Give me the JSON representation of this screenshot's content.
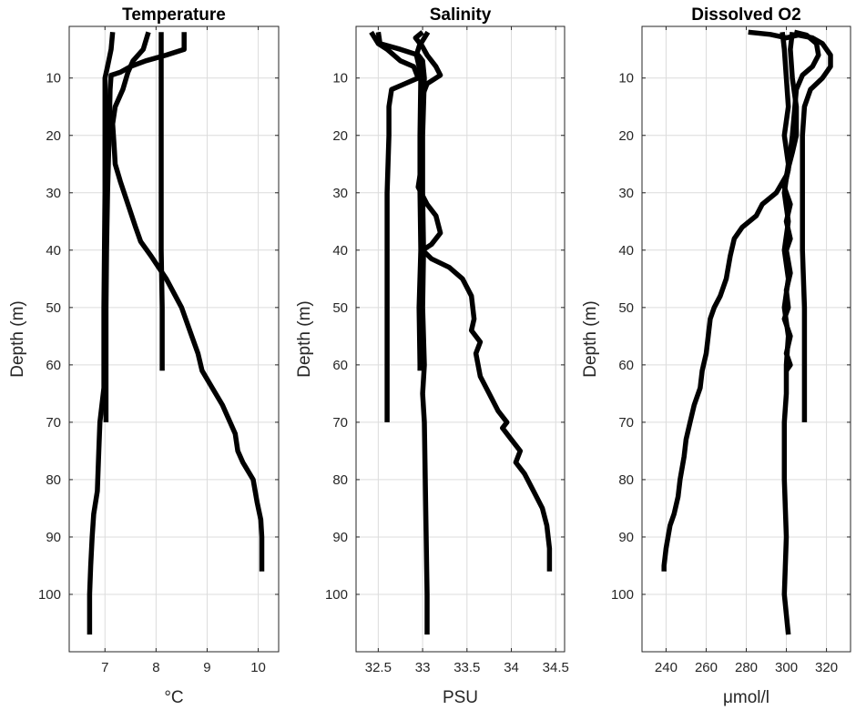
{
  "chart_data": [
    {
      "type": "line",
      "title": "Temperature",
      "xlabel": "°C",
      "ylabel": "Depth (m)",
      "xlim": [
        6.3,
        10.4
      ],
      "ylim": [
        110,
        1
      ],
      "y_reversed": true,
      "grid": true,
      "xticks": [
        7,
        8,
        9,
        10
      ],
      "yticks": [
        10,
        20,
        30,
        40,
        50,
        60,
        70,
        80,
        90,
        100
      ],
      "series": [
        {
          "points": [
            [
              7.15,
              2
            ],
            [
              7.12,
              5
            ],
            [
              7.05,
              8
            ],
            [
              7.0,
              10
            ],
            [
              7.0,
              20
            ],
            [
              7.0,
              30
            ],
            [
              6.99,
              40
            ],
            [
              6.98,
              50
            ],
            [
              6.98,
              60
            ],
            [
              6.98,
              64
            ],
            [
              6.9,
              70
            ],
            [
              6.88,
              75
            ],
            [
              6.85,
              82
            ],
            [
              6.78,
              86
            ],
            [
              6.75,
              90
            ],
            [
              6.72,
              95
            ],
            [
              6.7,
              100
            ],
            [
              6.7,
              107
            ]
          ]
        },
        {
          "points": [
            [
              8.1,
              2
            ],
            [
              8.1,
              10
            ],
            [
              8.1,
              20
            ],
            [
              8.1,
              30
            ],
            [
              8.1,
              40
            ],
            [
              8.12,
              50
            ],
            [
              8.12,
              60
            ],
            [
              8.12,
              61
            ]
          ]
        },
        {
          "points": [
            [
              7.85,
              2
            ],
            [
              7.75,
              5
            ],
            [
              7.55,
              7
            ],
            [
              7.45,
              9
            ],
            [
              7.35,
              12
            ],
            [
              7.2,
              15
            ],
            [
              7.15,
              18
            ],
            [
              7.18,
              22
            ],
            [
              7.2,
              25
            ],
            [
              7.3,
              28
            ],
            [
              7.45,
              32
            ],
            [
              7.6,
              36
            ],
            [
              7.7,
              38.5
            ],
            [
              7.9,
              41
            ],
            [
              8.2,
              45
            ],
            [
              8.5,
              50
            ],
            [
              8.7,
              55
            ],
            [
              8.82,
              58
            ],
            [
              8.9,
              61
            ],
            [
              9.1,
              64
            ],
            [
              9.3,
              67
            ],
            [
              9.4,
              69
            ],
            [
              9.55,
              72
            ],
            [
              9.6,
              75
            ],
            [
              9.7,
              77
            ],
            [
              9.9,
              80
            ],
            [
              9.98,
              84
            ],
            [
              10.05,
              87
            ],
            [
              10.07,
              90
            ],
            [
              10.07,
              96
            ]
          ]
        },
        {
          "points": [
            [
              8.55,
              2
            ],
            [
              8.55,
              5
            ],
            [
              8.2,
              6
            ],
            [
              7.8,
              7
            ],
            [
              7.5,
              8
            ],
            [
              7.3,
              9
            ],
            [
              7.12,
              9.5
            ],
            [
              7.1,
              12
            ],
            [
              7.08,
              20
            ],
            [
              7.05,
              30
            ],
            [
              7.03,
              40
            ],
            [
              7.02,
              50
            ],
            [
              7.02,
              60
            ],
            [
              7.02,
              70
            ]
          ]
        }
      ]
    },
    {
      "type": "line",
      "title": "Salinity",
      "xlabel": "PSU",
      "ylabel": "Depth (m)",
      "xlim": [
        32.25,
        34.6
      ],
      "ylim": [
        110,
        1
      ],
      "y_reversed": true,
      "grid": true,
      "xticks": [
        32.5,
        33,
        33.5,
        34,
        34.5
      ],
      "yticks": [
        10,
        20,
        30,
        40,
        50,
        60,
        70,
        80,
        90,
        100
      ],
      "series": [
        {
          "points": [
            [
              33.0,
              2
            ],
            [
              32.92,
              3
            ],
            [
              32.97,
              4
            ],
            [
              32.93,
              6
            ],
            [
              32.96,
              8
            ],
            [
              32.98,
              10
            ],
            [
              32.97,
              20
            ],
            [
              32.97,
              30
            ],
            [
              32.98,
              40
            ],
            [
              32.96,
              50
            ],
            [
              32.97,
              60
            ],
            [
              32.97,
              61
            ]
          ]
        },
        {
          "points": [
            [
              32.42,
              2
            ],
            [
              32.5,
              4
            ],
            [
              32.6,
              5
            ],
            [
              32.75,
              7
            ],
            [
              32.9,
              8
            ],
            [
              32.95,
              10
            ],
            [
              32.8,
              11
            ],
            [
              32.65,
              12
            ],
            [
              32.62,
              15
            ],
            [
              32.62,
              20
            ],
            [
              32.6,
              30
            ],
            [
              32.6,
              40
            ],
            [
              32.6,
              50
            ],
            [
              32.6,
              60
            ],
            [
              32.6,
              70
            ]
          ]
        },
        {
          "points": [
            [
              33.06,
              2
            ],
            [
              32.98,
              4
            ],
            [
              33.05,
              6
            ],
            [
              33.15,
              8
            ],
            [
              33.2,
              9.5
            ],
            [
              33.05,
              11
            ],
            [
              33.0,
              13
            ],
            [
              32.98,
              20
            ],
            [
              32.98,
              26
            ],
            [
              32.95,
              29
            ],
            [
              33.05,
              32
            ],
            [
              33.15,
              34
            ],
            [
              33.2,
              37
            ],
            [
              33.1,
              39
            ],
            [
              33.0,
              40
            ],
            [
              33.1,
              41.5
            ],
            [
              33.3,
              43
            ],
            [
              33.45,
              45
            ],
            [
              33.55,
              48
            ],
            [
              33.58,
              52
            ],
            [
              33.55,
              54
            ],
            [
              33.65,
              56
            ],
            [
              33.6,
              58
            ],
            [
              33.65,
              62
            ],
            [
              33.75,
              65
            ],
            [
              33.85,
              68
            ],
            [
              33.95,
              70
            ],
            [
              33.9,
              71
            ],
            [
              34.0,
              73
            ],
            [
              34.1,
              75
            ],
            [
              34.05,
              77
            ],
            [
              34.15,
              79
            ],
            [
              34.25,
              82
            ],
            [
              34.35,
              85
            ],
            [
              34.4,
              88
            ],
            [
              34.43,
              92
            ],
            [
              34.43,
              96
            ]
          ]
        },
        {
          "points": [
            [
              32.5,
              2
            ],
            [
              32.52,
              4
            ],
            [
              32.75,
              5
            ],
            [
              32.95,
              6
            ],
            [
              33.0,
              7
            ],
            [
              33.02,
              10
            ],
            [
              33.0,
              20
            ],
            [
              33.0,
              30
            ],
            [
              33.01,
              40
            ],
            [
              33.0,
              50
            ],
            [
              33.02,
              60
            ],
            [
              33.0,
              65
            ],
            [
              33.02,
              70
            ],
            [
              33.03,
              80
            ],
            [
              33.04,
              90
            ],
            [
              33.05,
              100
            ],
            [
              33.05,
              107
            ]
          ]
        }
      ]
    },
    {
      "type": "line",
      "title": "Dissolved O2",
      "xlabel": "μmol/l",
      "ylabel": "Depth (m)",
      "xlim": [
        228,
        332
      ],
      "ylim": [
        110,
        1
      ],
      "y_reversed": true,
      "grid": true,
      "xticks": [
        240,
        260,
        280,
        300,
        320
      ],
      "yticks": [
        10,
        20,
        30,
        40,
        50,
        60,
        70,
        80,
        90,
        100
      ],
      "series": [
        {
          "points": [
            [
              281,
              2
            ],
            [
              292,
              2.4
            ],
            [
              300,
              3
            ],
            [
              306,
              2.5
            ],
            [
              313,
              3
            ],
            [
              318,
              4
            ],
            [
              322,
              6
            ],
            [
              322,
              8
            ],
            [
              318,
              10
            ],
            [
              312,
              12
            ],
            [
              309,
              15
            ],
            [
              308,
              20
            ],
            [
              308,
              30
            ],
            [
              308,
              40
            ],
            [
              309,
              50
            ],
            [
              309,
              60
            ],
            [
              309,
              70
            ]
          ]
        },
        {
          "points": [
            [
              304,
              2
            ],
            [
              310,
              2.5
            ],
            [
              315,
              4
            ],
            [
              316,
              6
            ],
            [
              313,
              8
            ],
            [
              308,
              9.5
            ],
            [
              305,
              12
            ],
            [
              303,
              20
            ],
            [
              301,
              26
            ],
            [
              299,
              29
            ],
            [
              302,
              32
            ],
            [
              300,
              35
            ],
            [
              302,
              38
            ],
            [
              300,
              40
            ],
            [
              302,
              44
            ],
            [
              300,
              47
            ],
            [
              301,
              50
            ],
            [
              299,
              52
            ],
            [
              302,
              55
            ],
            [
              300,
              58
            ],
            [
              302,
              60
            ],
            [
              300,
              61
            ]
          ]
        },
        {
          "points": [
            [
              298,
              2
            ],
            [
              299,
              5
            ],
            [
              300,
              10
            ],
            [
              301,
              15
            ],
            [
              299,
              20
            ],
            [
              301,
              25
            ],
            [
              299,
              30
            ],
            [
              301,
              35
            ],
            [
              299,
              40
            ],
            [
              301,
              45
            ],
            [
              299,
              50
            ],
            [
              301,
              55
            ],
            [
              300,
              60
            ],
            [
              300,
              65
            ],
            [
              299,
              70
            ],
            [
              299,
              80
            ],
            [
              300,
              90
            ],
            [
              299,
              100
            ],
            [
              301,
              107
            ]
          ]
        },
        {
          "points": [
            [
              303,
              2
            ],
            [
              302,
              5
            ],
            [
              303,
              10
            ],
            [
              305,
              15
            ],
            [
              305,
              20
            ],
            [
              303,
              23
            ],
            [
              300,
              27
            ],
            [
              295,
              30
            ],
            [
              288,
              32
            ],
            [
              285,
              34
            ],
            [
              278,
              36
            ],
            [
              274,
              38
            ],
            [
              272,
              41
            ],
            [
              270,
              45
            ],
            [
              267,
              48
            ],
            [
              264,
              50
            ],
            [
              262,
              52
            ],
            [
              261,
              55
            ],
            [
              260,
              58
            ],
            [
              258,
              61
            ],
            [
              257,
              64
            ],
            [
              254,
              67
            ],
            [
              252,
              70
            ],
            [
              250,
              73
            ],
            [
              249,
              76
            ],
            [
              247,
              80
            ],
            [
              246,
              83
            ],
            [
              244,
              86
            ],
            [
              242,
              88
            ],
            [
              241,
              90
            ],
            [
              240,
              92
            ],
            [
              239,
              95
            ],
            [
              239,
              96
            ]
          ]
        }
      ]
    }
  ]
}
